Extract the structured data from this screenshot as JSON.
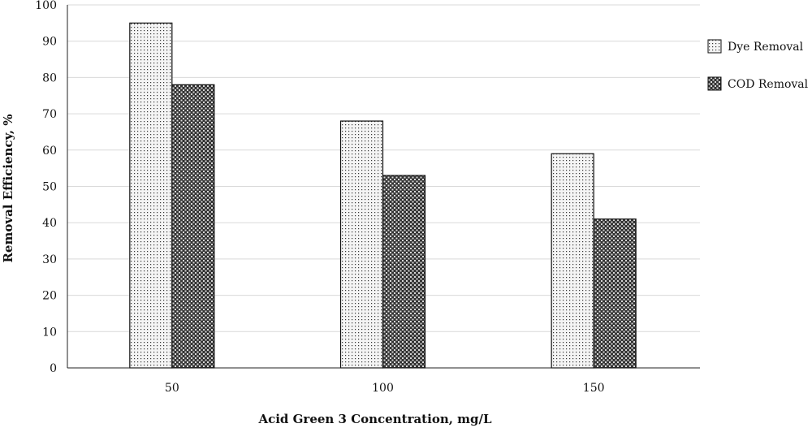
{
  "chart_data": {
    "type": "bar",
    "categories": [
      "50",
      "100",
      "150"
    ],
    "series": [
      {
        "name": "Dye Removal",
        "values": [
          95,
          68,
          59
        ],
        "pattern": "dots",
        "color": "#f2f2f2"
      },
      {
        "name": "COD Removal",
        "values": [
          78,
          53,
          41
        ],
        "pattern": "crosshatch",
        "color": "#3a3a3a"
      }
    ],
    "xlabel": "Acid Green 3 Concentration, mg/L",
    "ylabel": "Removal Efficiency, %",
    "ylim": [
      0,
      100
    ],
    "yticks": [
      0,
      10,
      20,
      30,
      40,
      50,
      60,
      70,
      80,
      90,
      100
    ],
    "grid": true,
    "legend_position": "right"
  }
}
